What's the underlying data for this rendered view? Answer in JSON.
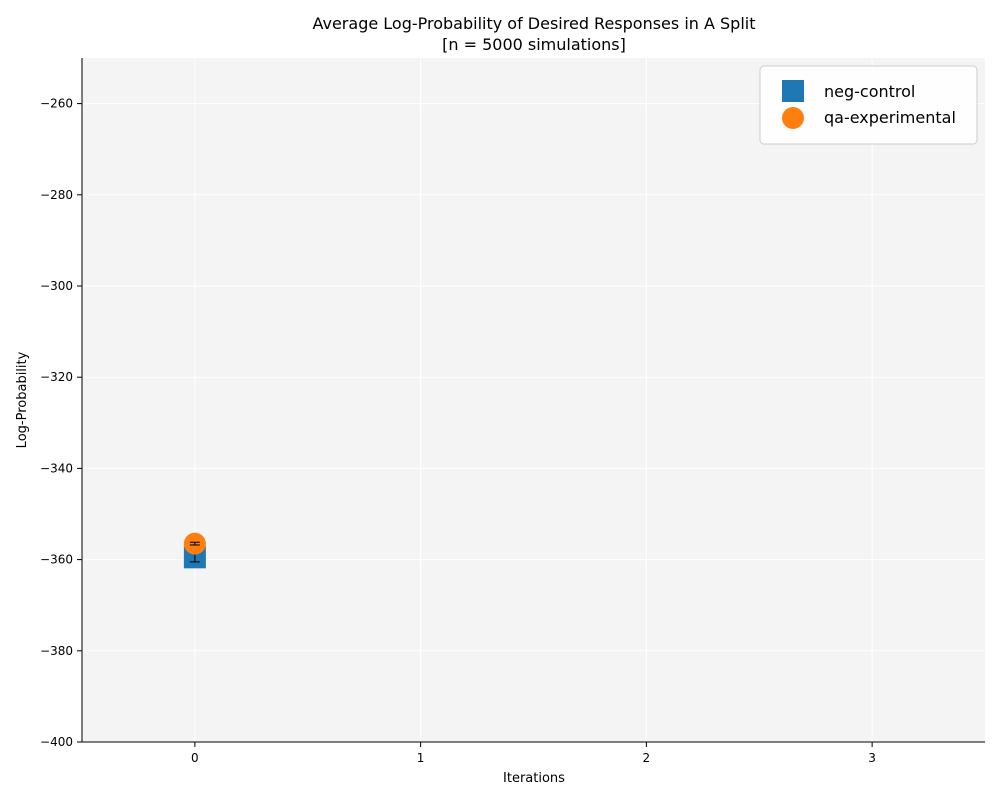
{
  "chart_data": {
    "type": "scatter",
    "title_line1": "Average Log-Probability of Desired Responses in A Split",
    "title_line2": "[n = 5000 simulations]",
    "xlabel": "Iterations",
    "ylabel": "Log-Probability",
    "xlim": [
      -0.5,
      3.5
    ],
    "ylim": [
      -400,
      -250
    ],
    "xticks": [
      0,
      1,
      2,
      3
    ],
    "xtick_labels": [
      "0",
      "1",
      "2",
      "3"
    ],
    "yticks": [
      -400,
      -380,
      -360,
      -340,
      -320,
      -300,
      -280,
      -260
    ],
    "ytick_labels": [
      "−400",
      "−380",
      "−360",
      "−340",
      "−320",
      "−300",
      "−280",
      "−260"
    ],
    "grid": true,
    "legend_position": "top-right",
    "series": [
      {
        "name": "neg-control",
        "marker": "square",
        "color": "#1f77b4",
        "x": [
          0
        ],
        "y": [
          -359.5
        ],
        "yerr": [
          1
        ]
      },
      {
        "name": "qa-experimental",
        "marker": "circle",
        "color": "#ff7f0e",
        "x": [
          0
        ],
        "y": [
          -356.5
        ],
        "yerr": [
          0.3
        ]
      }
    ]
  }
}
